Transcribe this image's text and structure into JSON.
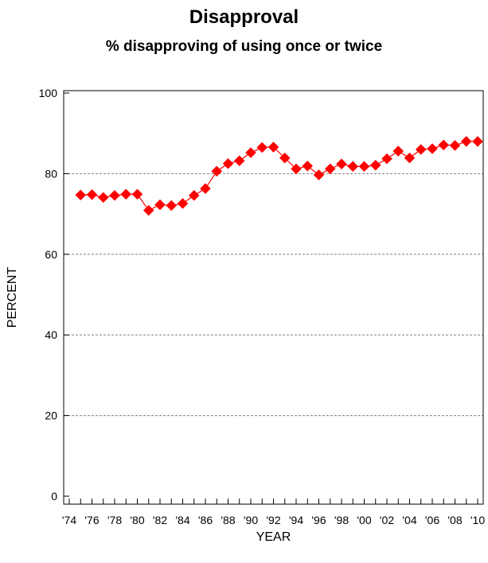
{
  "chart_data": {
    "type": "line",
    "title": "Disapproval",
    "subtitle": "% disapproving of using once or twice",
    "xlabel": "YEAR",
    "ylabel": "PERCENT",
    "xlim": [
      1974,
      2010
    ],
    "ylim": [
      0,
      100
    ],
    "x_tick_labels": [
      "'74",
      "'76",
      "'78",
      "'80",
      "'82",
      "'84",
      "'86",
      "'88",
      "'90",
      "'92",
      "'94",
      "'96",
      "'98",
      "'00",
      "'02",
      "'04",
      "'06",
      "'08",
      "'10"
    ],
    "y_tick_labels": [
      "0",
      "20",
      "40",
      "60",
      "80",
      "100"
    ],
    "grid": "horizontal dashed",
    "series": [
      {
        "color": "#ff0000",
        "marker": "diamond",
        "x": [
          1975,
          1976,
          1977,
          1978,
          1979,
          1980,
          1981,
          1982,
          1983,
          1984,
          1985,
          1986,
          1987,
          1988,
          1989,
          1990,
          1991,
          1992,
          1993,
          1994,
          1995,
          1996,
          1997,
          1998,
          1999,
          2000,
          2001,
          2002,
          2003,
          2004,
          2005,
          2006,
          2007,
          2008,
          2009,
          2010
        ],
        "values": [
          74.7,
          74.8,
          74.1,
          74.6,
          74.9,
          74.9,
          70.9,
          72.3,
          72.1,
          72.6,
          74.6,
          76.3,
          80.6,
          82.5,
          83.2,
          85.2,
          86.5,
          86.6,
          83.9,
          81.2,
          81.9,
          79.7,
          81.2,
          82.4,
          81.8,
          81.8,
          82.1,
          83.7,
          85.6,
          83.9,
          86.0,
          86.2,
          87.1,
          87.0,
          88.0,
          88.0
        ]
      }
    ]
  }
}
